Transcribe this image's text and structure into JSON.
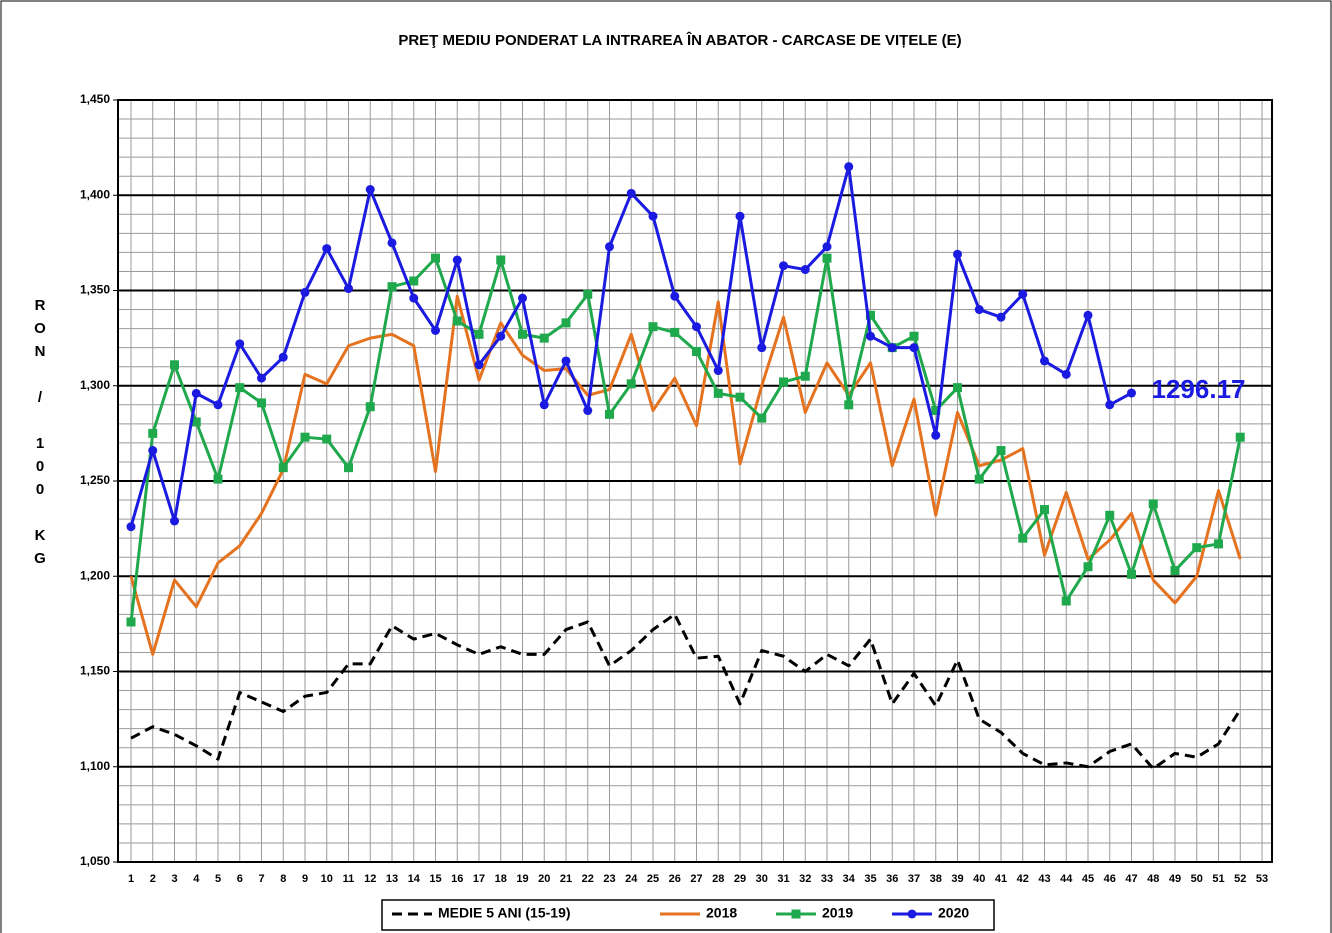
{
  "chart_data": {
    "type": "line",
    "title": "PREŢ MEDIU PONDERAT LA INTRAREA ÎN ABATOR - CARCASE DE VIȚELE (E)",
    "y_label": "RON / 100 KG",
    "categories": [
      1,
      2,
      3,
      4,
      5,
      6,
      7,
      8,
      9,
      10,
      11,
      12,
      13,
      14,
      15,
      16,
      17,
      18,
      19,
      20,
      21,
      22,
      23,
      24,
      25,
      26,
      27,
      28,
      29,
      30,
      31,
      32,
      33,
      34,
      35,
      36,
      37,
      38,
      39,
      40,
      41,
      42,
      43,
      44,
      45,
      46,
      47,
      48,
      49,
      50,
      51,
      52,
      53
    ],
    "ylim": [
      1050,
      1450
    ],
    "yticks": [
      {
        "value": 1050,
        "label": "1,050"
      },
      {
        "value": 1100,
        "label": "1,100"
      },
      {
        "value": 1150,
        "label": "1,150"
      },
      {
        "value": 1200,
        "label": "1,200"
      },
      {
        "value": 1250,
        "label": "1,250"
      },
      {
        "value": 1300,
        "label": "1,300"
      },
      {
        "value": 1350,
        "label": "1,350"
      },
      {
        "value": 1400,
        "label": "1,400"
      },
      {
        "value": 1450,
        "label": "1,450"
      }
    ],
    "yminorticks": [
      1060,
      1070,
      1080,
      1090,
      1110,
      1120,
      1130,
      1140,
      1160,
      1170,
      1180,
      1190,
      1210,
      1220,
      1230,
      1240,
      1260,
      1270,
      1280,
      1290,
      1310,
      1320,
      1330,
      1340,
      1360,
      1370,
      1380,
      1390,
      1410,
      1420,
      1430,
      1440
    ],
    "grid": true,
    "legend": "bottom",
    "series": [
      {
        "name": "MEDIE 5 ANI (15-19)",
        "color": "#000000",
        "line_style": "dashed",
        "marker": "none",
        "values": [
          1115,
          1121,
          1117,
          1111,
          1104,
          1139,
          1134,
          1129,
          1137,
          1139,
          1154,
          1154,
          1174,
          1167,
          1170,
          1164,
          1159,
          1163,
          1159,
          1159,
          1172,
          1176,
          1153,
          1161,
          1172,
          1180,
          1157,
          1158,
          1133,
          1161,
          1158,
          1150,
          1159,
          1153,
          1167,
          1133,
          1149,
          1132,
          1156,
          1125,
          1118,
          1107,
          1101,
          1102,
          1100,
          1108,
          1112,
          1099,
          1107,
          1105,
          1112,
          1130,
          null
        ]
      },
      {
        "name": "2018",
        "color": "#e5721f",
        "line_style": "solid",
        "marker": "none",
        "values": [
          1200,
          1159,
          1198,
          1184,
          1207,
          1216,
          1233,
          1256,
          1306,
          1301,
          1321,
          1325,
          1327,
          1321,
          1255,
          1347,
          1303,
          1333,
          1316,
          1308,
          1309,
          1295,
          1298,
          1327,
          1287,
          1304,
          1279,
          1344,
          1259,
          1300,
          1336,
          1286,
          1312,
          1295,
          1312,
          1258,
          1293,
          1232,
          1286,
          1258,
          1261,
          1267,
          1211,
          1244,
          1209,
          1219,
          1233,
          1198,
          1186,
          1200,
          1245,
          1209,
          null
        ]
      },
      {
        "name": "2019",
        "color": "#1fa84c",
        "line_style": "solid",
        "marker": "square",
        "values": [
          1176,
          1275,
          1311,
          1281,
          1251,
          1299,
          1291,
          1257,
          1273,
          1272,
          1257,
          1289,
          1352,
          1355,
          1367,
          1334,
          1327,
          1366,
          1327,
          1325,
          1333,
          1348,
          1285,
          1301,
          1331,
          1328,
          1318,
          1296,
          1294,
          1283,
          1302,
          1305,
          1367,
          1290,
          1337,
          1320,
          1326,
          1287,
          1299,
          1251,
          1266,
          1220,
          1235,
          1187,
          1205,
          1232,
          1201,
          1238,
          1203,
          1215,
          1217,
          1273,
          null
        ]
      },
      {
        "name": "2020",
        "color": "#1a1ae0",
        "line_style": "solid",
        "marker": "circle",
        "values": [
          1226,
          1266,
          1229,
          1296,
          1290,
          1322,
          1304,
          1315,
          1349,
          1372,
          1351,
          1403,
          1375,
          1346,
          1329,
          1366,
          1311,
          1326,
          1346,
          1290,
          1313,
          1287,
          1373,
          1401,
          1389,
          1347,
          1331,
          1308,
          1389,
          1320,
          1363,
          1361,
          1373,
          1415,
          1326,
          1320,
          1320,
          1274,
          1369,
          1340,
          1336,
          1348,
          1313,
          1306,
          1337,
          1290,
          1296.17,
          null,
          null,
          null,
          null,
          null,
          null
        ]
      }
    ],
    "annotation": "1296.17"
  }
}
